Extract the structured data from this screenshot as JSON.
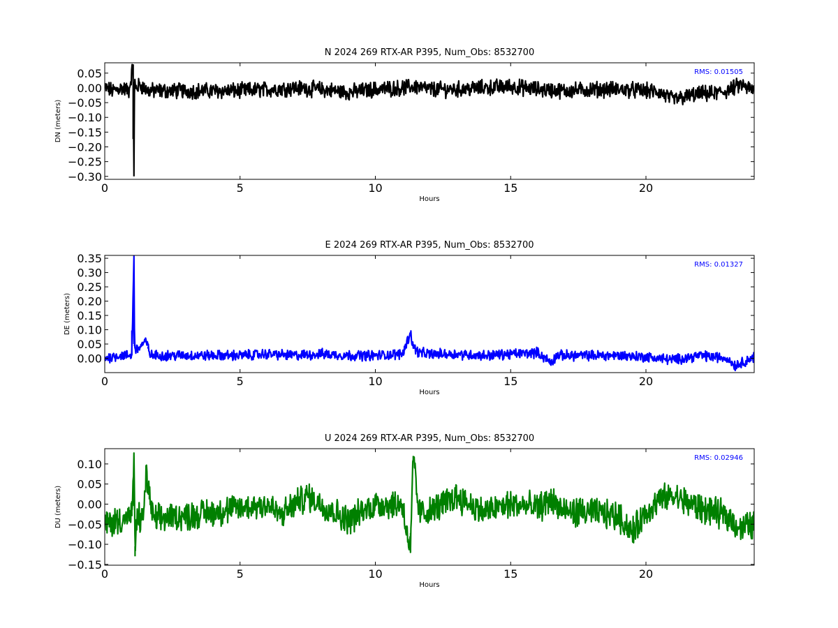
{
  "chart_data": [
    {
      "type": "line",
      "title": "N 2024 269 RTX-AR  P395, Num_Obs: 8532700",
      "xlabel": "Hours",
      "ylabel": "DN (meters)",
      "xlim": [
        0,
        24
      ],
      "ylim": [
        -0.31,
        0.085
      ],
      "xticks": [
        0,
        5,
        10,
        15,
        20
      ],
      "yticks": [
        0.05,
        0.0,
        -0.05,
        -0.1,
        -0.15,
        -0.2,
        -0.25,
        -0.3
      ],
      "ytick_labels": [
        "0.05",
        "0.00",
        "−0.05",
        "−0.10",
        "−0.15",
        "−0.20",
        "−0.25",
        "−0.30"
      ],
      "annotation": "RMS:  0.01505",
      "annotation_color": "#0000ff",
      "color": "#000000",
      "series": [
        {
          "x": [
            0,
            0.3,
            0.6,
            0.9,
            1.05,
            1.08,
            1.1,
            1.15,
            1.3,
            1.6,
            2,
            3,
            4,
            5,
            6,
            7,
            8,
            9,
            10,
            11,
            11.5,
            12,
            13,
            14,
            15,
            16,
            17,
            18,
            19,
            20,
            20.5,
            21,
            21.5,
            22,
            22.5,
            23,
            23.5,
            24
          ],
          "y": [
            0.0,
            -0.01,
            0.0,
            -0.01,
            0.08,
            -0.3,
            0.02,
            0.0,
            0.01,
            -0.01,
            -0.01,
            -0.01,
            -0.01,
            -0.01,
            -0.005,
            0.0,
            -0.005,
            -0.015,
            -0.005,
            0.0,
            0.005,
            -0.005,
            -0.005,
            0.0,
            0.005,
            -0.005,
            -0.01,
            -0.005,
            -0.005,
            -0.01,
            -0.015,
            -0.04,
            -0.03,
            -0.02,
            -0.02,
            -0.01,
            0.01,
            -0.01
          ],
          "spread": 0.045
        }
      ]
    },
    {
      "type": "line",
      "title": "E 2024 269 RTX-AR  P395, Num_Obs: 8532700",
      "xlabel": "Hours",
      "ylabel": "DE (meters)",
      "xlim": [
        0,
        24
      ],
      "ylim": [
        -0.05,
        0.36
      ],
      "xticks": [
        0,
        5,
        10,
        15,
        20
      ],
      "yticks": [
        0.35,
        0.3,
        0.25,
        0.2,
        0.15,
        0.1,
        0.05,
        0.0
      ],
      "ytick_labels": [
        "0.35",
        "0.30",
        "0.25",
        "0.20",
        "0.15",
        "0.10",
        "0.05",
        "0.00"
      ],
      "annotation": "RMS:  0.01327",
      "annotation_color": "#0000ff",
      "color": "#0000ff",
      "series": [
        {
          "x": [
            0,
            0.5,
            1.0,
            1.08,
            1.1,
            1.15,
            1.3,
            1.5,
            1.6,
            1.7,
            2,
            3,
            4,
            5,
            6,
            7,
            8,
            9,
            10,
            11,
            11.3,
            11.4,
            11.6,
            12,
            13,
            14,
            15,
            16,
            16.5,
            16.7,
            17,
            18,
            19,
            20,
            21,
            22,
            23,
            23.3,
            24
          ],
          "y": [
            0.0,
            0.01,
            0.01,
            0.36,
            0.05,
            0.03,
            0.04,
            0.06,
            0.04,
            0.01,
            0.01,
            0.01,
            0.01,
            0.01,
            0.015,
            0.01,
            0.015,
            0.01,
            0.01,
            0.015,
            0.09,
            0.04,
            0.02,
            0.015,
            0.015,
            0.01,
            0.015,
            0.02,
            -0.015,
            0.01,
            0.01,
            0.01,
            0.01,
            0.005,
            -0.005,
            0.01,
            0.0,
            -0.025,
            0.005
          ],
          "spread": 0.03
        }
      ]
    },
    {
      "type": "line",
      "title": "U 2024 269 RTX-AR  P395, Num_Obs: 8532700",
      "xlabel": "Hours",
      "ylabel": "DU (meters)",
      "xlim": [
        0,
        24
      ],
      "ylim": [
        -0.152,
        0.138
      ],
      "xticks": [
        0,
        5,
        10,
        15,
        20
      ],
      "yticks": [
        0.1,
        0.05,
        0.0,
        -0.05,
        -0.1,
        -0.15
      ],
      "ytick_labels": [
        "0.10",
        "0.05",
        "0.00",
        "−0.05",
        "−0.10",
        "−0.15"
      ],
      "annotation": "RMS:  0.02946",
      "annotation_color": "#0000ff",
      "color": "#008000",
      "series": [
        {
          "x": [
            0,
            0.5,
            1.0,
            1.08,
            1.12,
            1.2,
            1.4,
            1.55,
            1.65,
            1.8,
            2.5,
            3,
            4,
            5,
            6,
            6.5,
            7,
            7.5,
            8,
            9,
            9.5,
            10,
            10.5,
            11,
            11.3,
            11.4,
            11.6,
            12,
            13,
            14,
            15,
            16,
            16.5,
            17,
            18,
            19,
            19.5,
            20,
            20.5,
            21,
            22,
            23,
            23.5,
            24
          ],
          "y": [
            -0.05,
            -0.04,
            -0.03,
            0.12,
            -0.13,
            -0.03,
            -0.04,
            0.08,
            0.02,
            -0.04,
            -0.03,
            -0.03,
            -0.02,
            -0.01,
            0.0,
            -0.03,
            0.0,
            0.02,
            0.0,
            -0.04,
            -0.02,
            0.0,
            0.0,
            0.0,
            -0.12,
            0.12,
            -0.02,
            -0.02,
            0.02,
            -0.02,
            0.0,
            -0.01,
            0.01,
            -0.02,
            -0.02,
            -0.03,
            -0.07,
            -0.02,
            0.01,
            0.02,
            -0.01,
            -0.03,
            -0.06,
            -0.05
          ],
          "spread": 0.06
        }
      ]
    }
  ]
}
